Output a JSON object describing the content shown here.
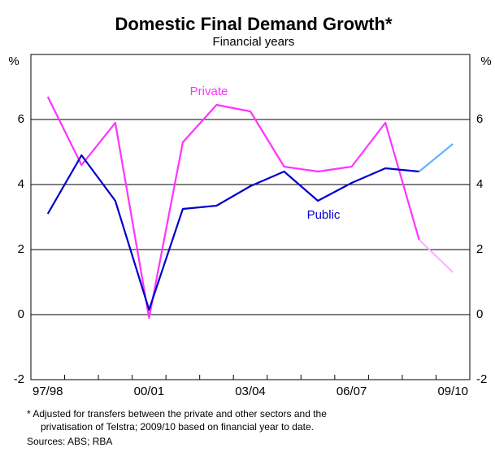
{
  "chart_data": {
    "type": "line",
    "title": "Domestic Final Demand Growth*",
    "subtitle": "Financial years",
    "y_label": "%",
    "y2_label": "%",
    "categories": [
      "97/98",
      null,
      null,
      "00/01",
      null,
      null,
      "03/04",
      null,
      null,
      "06/07",
      null,
      null,
      "09/10"
    ],
    "series": [
      {
        "name": "Private",
        "color": "#ff33ff",
        "ytd_color": "#ffb3ff",
        "values": [
          6.7,
          4.6,
          5.9,
          -0.1,
          5.3,
          6.45,
          6.25,
          4.55,
          4.4,
          4.55,
          5.9,
          2.3,
          1.3
        ]
      },
      {
        "name": "Public",
        "color": "#0000cc",
        "ytd_color": "#66b3ff",
        "values": [
          3.1,
          4.9,
          3.5,
          0.15,
          3.25,
          3.35,
          3.95,
          4.4,
          3.5,
          4.05,
          4.5,
          4.4,
          5.25
        ]
      }
    ],
    "ylim": [
      -2,
      8
    ],
    "yticks": [
      -2,
      0,
      2,
      4,
      6
    ],
    "y2lim": [
      -2,
      8
    ],
    "y2ticks": [
      -2,
      0,
      2,
      4,
      6
    ],
    "grid": true,
    "footnote": [
      "*   Adjusted for transfers between the private and other sectors and the",
      "privatisation of Telstra; 2009/10 based on financial year to date."
    ],
    "sources": "Sources: ABS; RBA"
  }
}
